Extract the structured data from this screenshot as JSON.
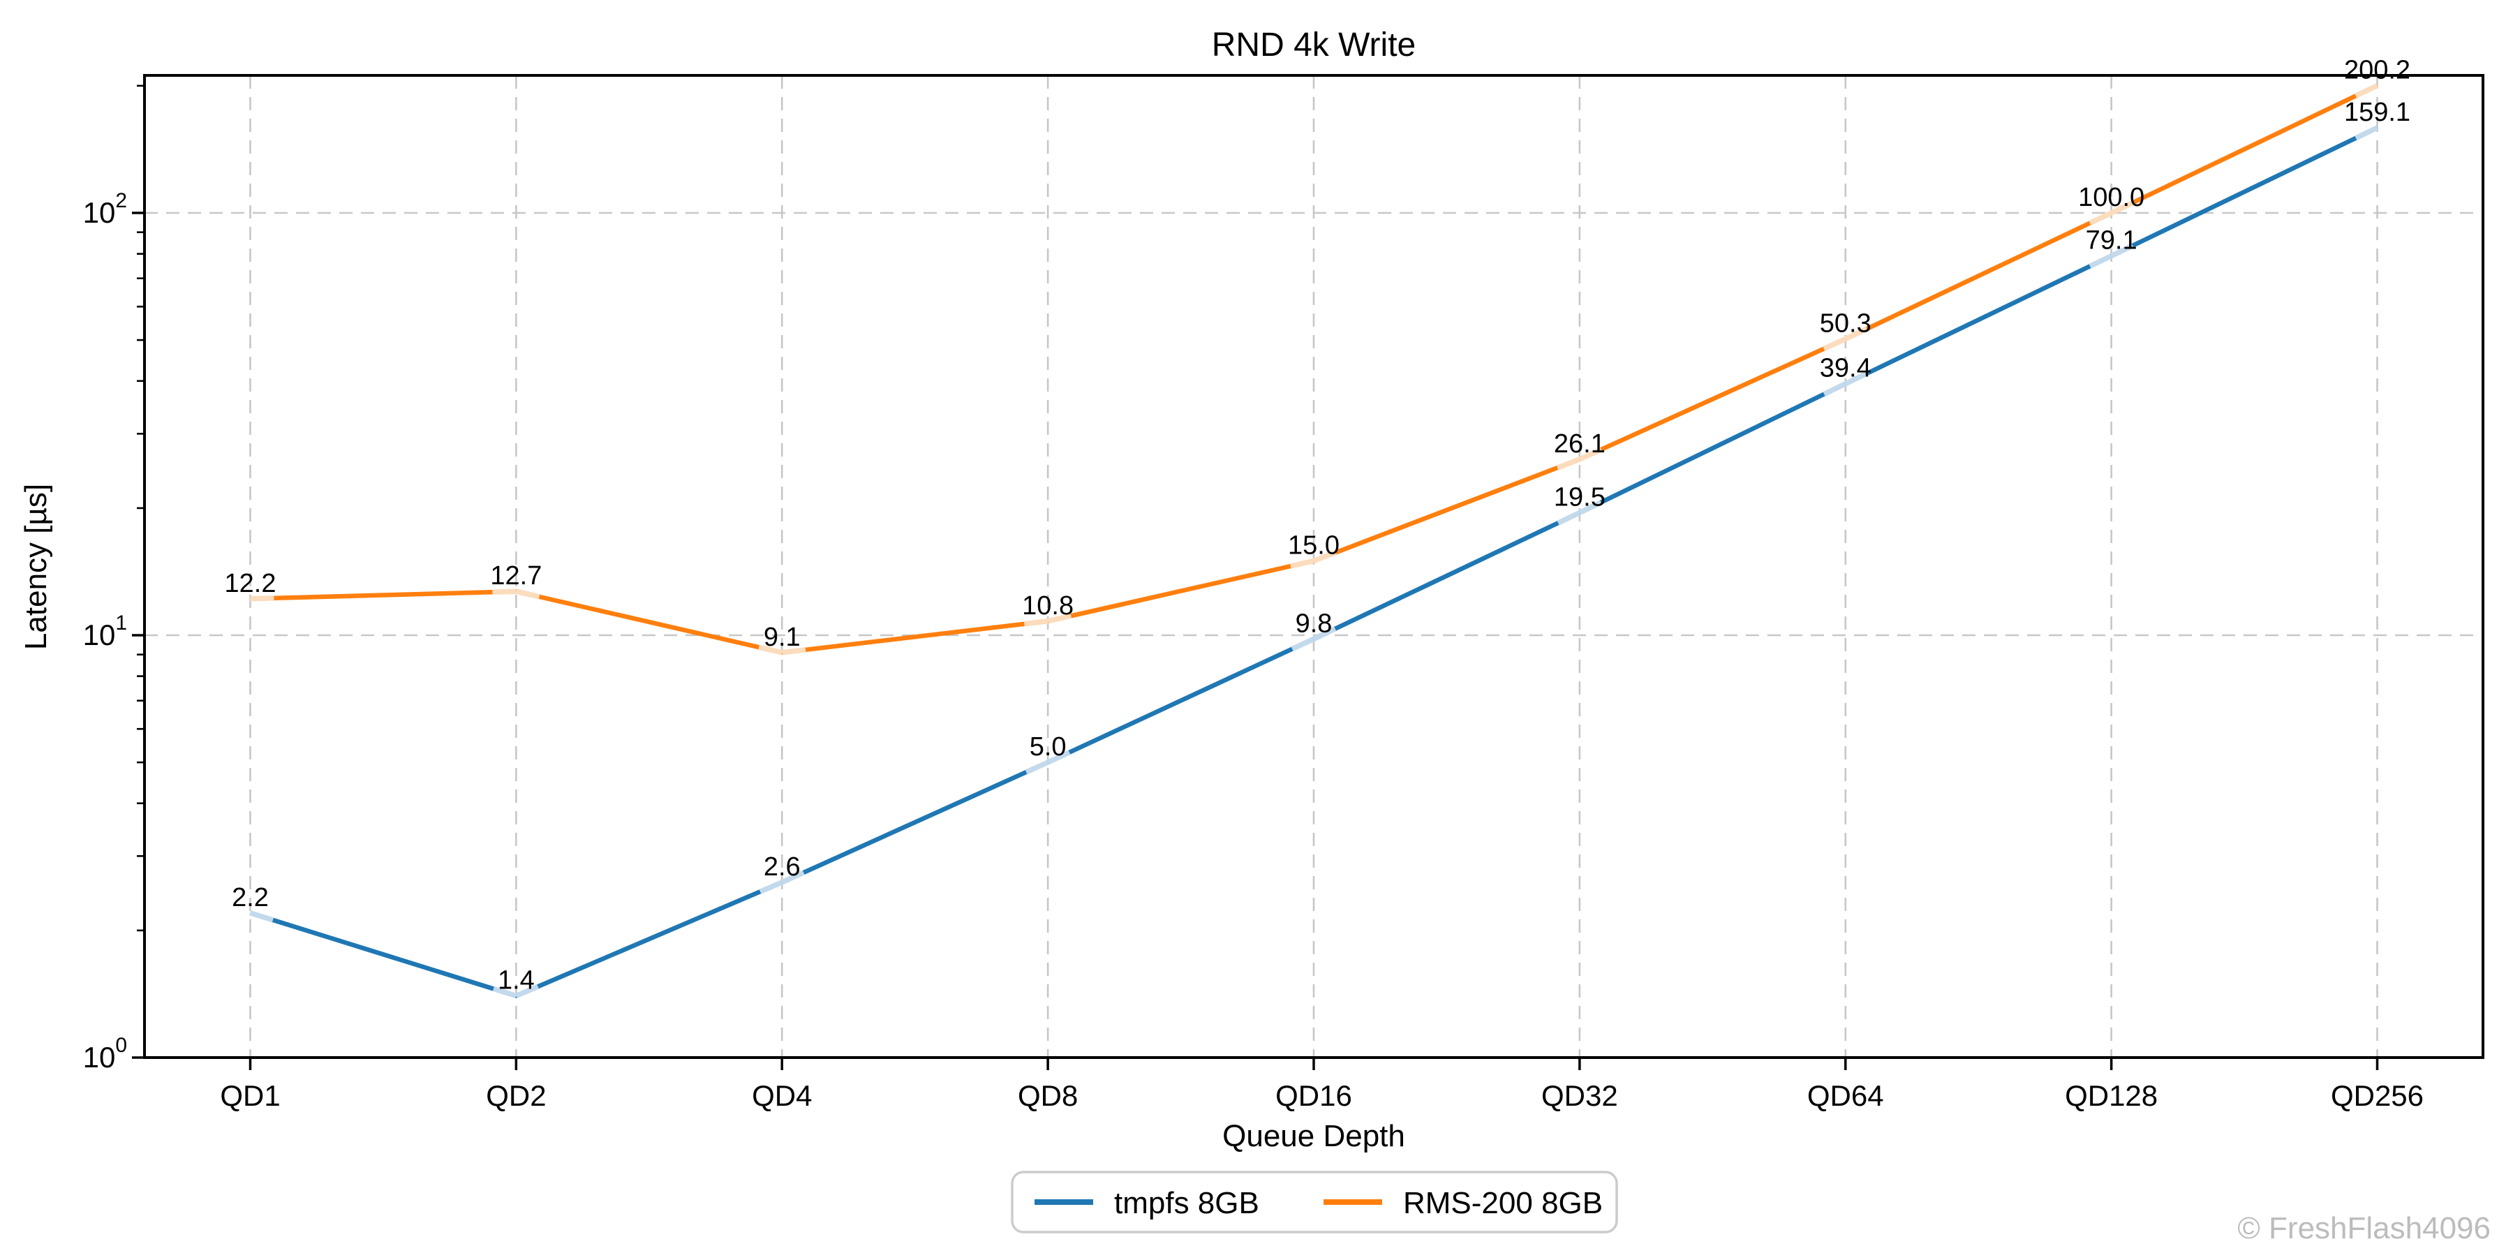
{
  "figure": {
    "watermark": "© FreshFlash4096"
  },
  "chart_data": {
    "type": "line",
    "title": "RND 4k Write",
    "xlabel": "Queue Depth",
    "ylabel": "Latency [µs]",
    "yscale": "log",
    "ylim": [
      1,
      212
    ],
    "grid": true,
    "grid_style": "dashed",
    "legend_position": "bottom-center",
    "categories": [
      "QD1",
      "QD2",
      "QD4",
      "QD8",
      "QD16",
      "QD32",
      "QD64",
      "QD128",
      "QD256"
    ],
    "y_ticks": [
      {
        "base": "10",
        "exponent": "0",
        "value": 1
      },
      {
        "base": "10",
        "exponent": "1",
        "value": 10
      },
      {
        "base": "10",
        "exponent": "2",
        "value": 100
      }
    ],
    "series": [
      {
        "name": "tmpfs 8GB",
        "color": "#1f77b4",
        "marker_color": "#c3d9ec",
        "values": [
          2.2,
          1.4,
          2.6,
          5.0,
          9.8,
          19.5,
          39.4,
          79.1,
          159.1
        ],
        "labels": [
          "2.2",
          "1.4",
          "2.6",
          "5.0",
          "9.8",
          "19.5",
          "39.4",
          "79.1",
          "159.1"
        ]
      },
      {
        "name": "RMS-200 8GB",
        "color": "#ff7f0e",
        "marker_color": "#fbdcbc",
        "values": [
          12.2,
          12.7,
          9.1,
          10.8,
          15.0,
          26.1,
          50.3,
          100.0,
          200.2
        ],
        "labels": [
          "12.2",
          "12.7",
          "9.1",
          "10.8",
          "15.0",
          "26.1",
          "50.3",
          "100.0",
          "200.2"
        ]
      }
    ]
  }
}
